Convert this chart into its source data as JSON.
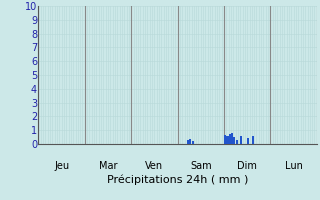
{
  "title": "Précipitations 24h ( mm )",
  "ylim": [
    0,
    10
  ],
  "yticks": [
    0,
    1,
    2,
    3,
    4,
    5,
    6,
    7,
    8,
    9,
    10
  ],
  "background_color": "#cce8e8",
  "plot_bg_color": "#cce8e8",
  "grid_color_minor": "#b8d8d8",
  "grid_color_major": "#888888",
  "bar_color": "#2255cc",
  "n_bars": 120,
  "day_labels": [
    "Jeu",
    "Mar",
    "Ven",
    "Sam",
    "Dim",
    "Lun"
  ],
  "day_sep_positions": [
    0,
    20,
    40,
    60,
    80,
    100,
    120
  ],
  "bar_values": [
    0,
    0,
    0,
    0,
    0,
    0,
    0,
    0,
    0,
    0,
    0,
    0,
    0,
    0,
    0,
    0,
    0,
    0,
    0,
    0,
    0,
    0,
    0,
    0,
    0,
    0,
    0,
    0,
    0,
    0,
    0,
    0,
    0,
    0,
    0,
    0,
    0,
    0,
    0,
    0,
    0,
    0,
    0,
    0,
    0,
    0,
    0,
    0,
    0,
    0,
    0,
    0,
    0,
    0,
    0,
    0,
    0,
    0,
    0,
    0,
    0,
    0,
    0,
    0,
    0.28,
    0.35,
    0.2,
    0,
    0,
    0,
    0,
    0,
    0,
    0,
    0,
    0,
    0,
    0,
    0,
    0,
    0.65,
    0.55,
    0.7,
    0.8,
    0.5,
    0.3,
    0,
    0.55,
    0,
    0,
    0.4,
    0,
    0.55,
    0,
    0,
    0,
    0,
    0,
    0,
    0,
    0,
    0,
    0,
    0,
    0,
    0,
    0,
    0,
    0,
    0,
    0,
    0,
    0,
    0,
    0,
    0,
    0,
    0,
    0,
    0
  ]
}
